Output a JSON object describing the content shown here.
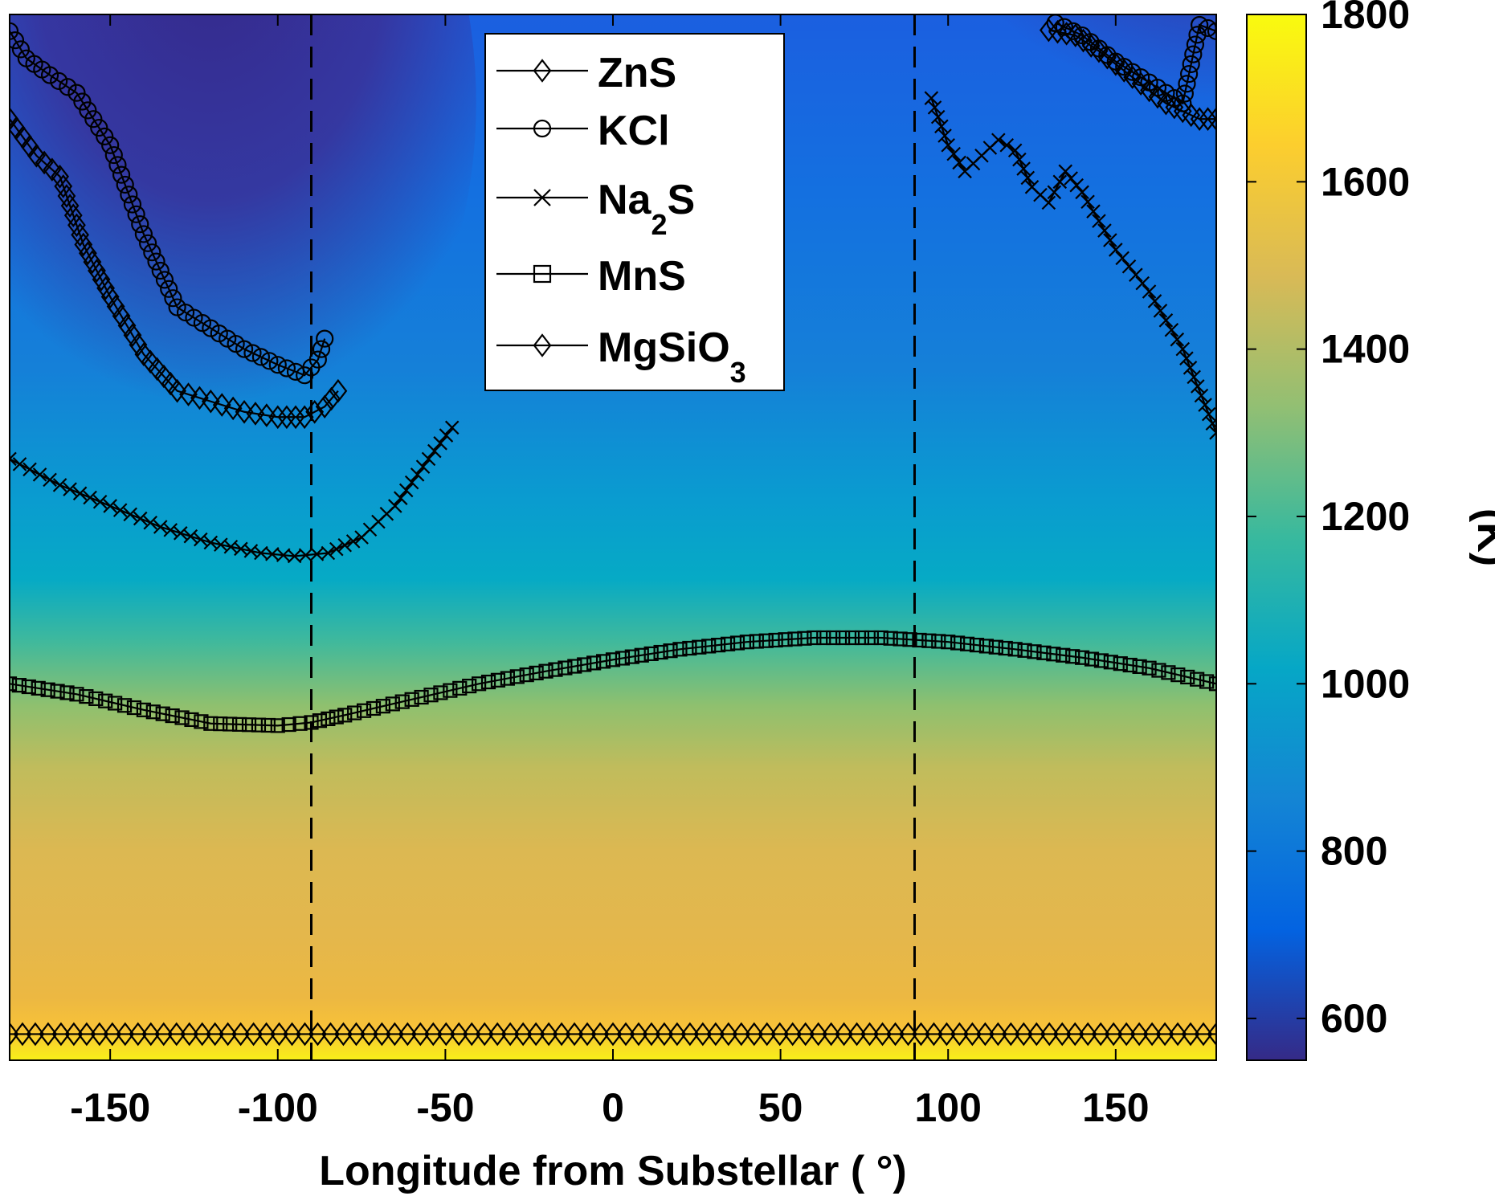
{
  "chart_data": {
    "type": "heatmap",
    "title": "",
    "xlabel": "Longitude from Substellar ( °)",
    "ylabel": "",
    "xlim": [
      -180,
      180
    ],
    "ylim": [
      0,
      1
    ],
    "xticks": [
      -150,
      -100,
      -50,
      0,
      50,
      100,
      150
    ],
    "xtick_labels": [
      "-150",
      "-100",
      "-50",
      "0",
      "50",
      "100",
      "150"
    ],
    "vertical_reference_lines": [
      -90,
      90
    ],
    "colorbar": {
      "label": "(K)",
      "range": [
        550,
        1800
      ],
      "ticks": [
        600,
        800,
        1000,
        1200,
        1400,
        1600,
        1800
      ],
      "tick_labels": [
        "600",
        "800",
        "1000",
        "1200",
        "1400",
        "1600",
        "1800"
      ],
      "colormap": [
        "#352a87",
        "#0363e1",
        "#1485d4",
        "#06a7c6",
        "#38b99e",
        "#92bf73",
        "#d9ba56",
        "#fcce2e",
        "#f9fb0e"
      ]
    },
    "legend": {
      "placement": "top-center",
      "entries": [
        {
          "label": "ZnS",
          "sub": "",
          "suffix": "",
          "marker": "diamond"
        },
        {
          "label": "KCl",
          "sub": "",
          "suffix": "",
          "marker": "circle"
        },
        {
          "label": "Na",
          "sub": "2",
          "suffix": "S",
          "marker": "x"
        },
        {
          "label": "MnS",
          "sub": "",
          "suffix": "",
          "marker": "square"
        },
        {
          "label": "MgSiO",
          "sub": "3",
          "suffix": "",
          "marker": "diamond"
        }
      ]
    },
    "series": [
      {
        "name": "KCl",
        "marker": "circle",
        "segments": [
          {
            "x": [
              -180,
              -175,
              -168,
              -160,
              -150,
              -140,
              -130,
              -120,
              -110,
              -100,
              -92,
              -88,
              -86
            ],
            "y": [
              0.984,
              0.958,
              0.942,
              0.925,
              0.875,
              0.79,
              0.72,
              0.7,
              0.68,
              0.665,
              0.655,
              0.67,
              0.69
            ]
          },
          {
            "x": [
              132,
              140,
              150,
              160,
              170,
              175,
              180
            ],
            "y": [
              0.992,
              0.98,
              0.955,
              0.935,
              0.915,
              0.99,
              0.984
            ]
          }
        ]
      },
      {
        "name": "ZnS",
        "marker": "diamond",
        "segments": [
          {
            "x": [
              -180,
              -172,
              -165,
              -158,
              -150,
              -140,
              -130,
              -120,
              -110,
              -100,
              -92,
              -86,
              -82
            ],
            "y": [
              0.9,
              0.865,
              0.845,
              0.78,
              0.73,
              0.675,
              0.64,
              0.63,
              0.62,
              0.615,
              0.615,
              0.625,
              0.64
            ]
          },
          {
            "x": [
              130,
              138,
              145,
              155,
              165,
              175,
              180
            ],
            "y": [
              0.985,
              0.98,
              0.965,
              0.94,
              0.915,
              0.9,
              0.9
            ]
          }
        ]
      },
      {
        "name": "Na2S",
        "marker": "x",
        "segments": [
          {
            "x": [
              -180,
              -165,
              -150,
              -135,
              -120,
              -105,
              -95,
              -85,
              -75,
              -65,
              -55,
              -48
            ],
            "y": [
              0.575,
              0.55,
              0.53,
              0.51,
              0.495,
              0.485,
              0.482,
              0.485,
              0.5,
              0.53,
              0.575,
              0.605
            ]
          },
          {
            "x": [
              95,
              100,
              105,
              110,
              115,
              120,
              125,
              130,
              135,
              140,
              150,
              160,
              170,
              180
            ],
            "y": [
              0.92,
              0.875,
              0.85,
              0.865,
              0.88,
              0.87,
              0.835,
              0.82,
              0.85,
              0.83,
              0.775,
              0.735,
              0.68,
              0.6
            ]
          }
        ]
      },
      {
        "name": "MnS",
        "marker": "square",
        "segments": [
          {
            "x": [
              -180,
              -160,
              -140,
              -120,
              -100,
              -90,
              -80,
              -60,
              -40,
              -20,
              0,
              20,
              40,
              60,
              80,
              100,
              120,
              140,
              160,
              180
            ],
            "y": [
              0.36,
              0.35,
              0.335,
              0.322,
              0.32,
              0.323,
              0.33,
              0.345,
              0.36,
              0.372,
              0.383,
              0.393,
              0.4,
              0.404,
              0.404,
              0.4,
              0.393,
              0.385,
              0.375,
              0.36
            ]
          }
        ]
      },
      {
        "name": "MgSiO3",
        "marker": "diamond",
        "segments": [
          {
            "x": [
              -180,
              180
            ],
            "y": [
              0.025,
              0.025
            ]
          }
        ]
      }
    ]
  }
}
